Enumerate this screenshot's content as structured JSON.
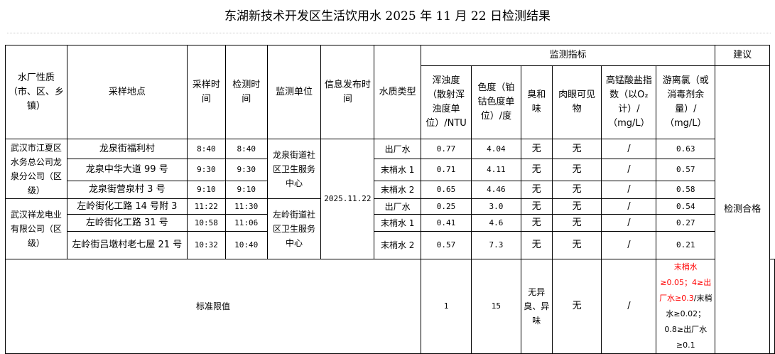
{
  "title": "东湖新技术开发区生活饮用水 2025 年 11 月 22 日检测结果",
  "headers": {
    "plant_type": "水厂性质（市、区、乡镇）",
    "location": "采样地点",
    "sample_time": "采样时间",
    "test_time": "检测时间",
    "monitor_unit": "监测单位",
    "publish_time": "信息发布时间",
    "water_type": "水质类型",
    "indicators": "监测指标",
    "advice": "建议",
    "turbidity": "浑浊度（散射浑浊度单位）/NTU",
    "color": "色度（铂钴色度单位）/度",
    "odor": "臭和味",
    "visible": "肉眼可见物",
    "permanganate": "高锰酸盐指数（以O₂计）/（mg/L）",
    "chlorine": "游离氯（或消毒剂余量）/（mg/L）"
  },
  "groups": [
    {
      "plant": "武汉市江夏区水务总公司龙泉分公司（区级）",
      "unit": "龙泉街道社区卫生服务中心"
    },
    {
      "plant": "武汉祥龙电业有限公司（区级）",
      "unit": "左岭街道社区卫生服务中心"
    }
  ],
  "publish_date": "2025.11.22",
  "advice": "检测合格",
  "rows": [
    {
      "location": "龙泉街福利村",
      "sample": "8:40",
      "test": "8:40",
      "type": "出厂水",
      "turbidity": "0.77",
      "color": "4.04",
      "odor": "无",
      "visible": "无",
      "permanganate": "/",
      "chlorine": "0.63"
    },
    {
      "location": "龙泉中华大道 99 号",
      "sample": "9:30",
      "test": "9:30",
      "type": "末梢水 1",
      "turbidity": "0.71",
      "color": "4.11",
      "odor": "无",
      "visible": "无",
      "permanganate": "/",
      "chlorine": "0.57"
    },
    {
      "location": "龙泉街营泉村 3 号",
      "sample": "9:10",
      "test": "9:10",
      "type": "末梢水 2",
      "turbidity": "0.65",
      "color": "4.46",
      "odor": "无",
      "visible": "无",
      "permanganate": "/",
      "chlorine": "0.58"
    },
    {
      "location": "左岭街化工路 14 号附 3",
      "sample": "11:22",
      "test": "11:30",
      "type": "出厂水",
      "turbidity": "0.25",
      "color": "3.0",
      "odor": "无",
      "visible": "无",
      "permanganate": "/",
      "chlorine": "0.54"
    },
    {
      "location": "左岭街化工路 31 号",
      "sample": "10:58",
      "test": "11:06",
      "type": "末梢水 1",
      "turbidity": "0.41",
      "color": "4.6",
      "odor": "无",
      "visible": "无",
      "permanganate": "/",
      "chlorine": "0.27"
    },
    {
      "location": "左岭街吕墩村老七屋 21 号",
      "sample": "10:32",
      "test": "10:40",
      "type": "末梢水 2",
      "turbidity": "0.57",
      "color": "7.3",
      "odor": "无",
      "visible": "无",
      "permanganate": "/",
      "chlorine": "0.21"
    }
  ],
  "limits": {
    "label": "标准限值",
    "turbidity": "1",
    "color": "15",
    "odor": "无异臭、异味",
    "visible": "无",
    "permanganate": "/",
    "chlorine_red": "末梢水≥0.05；4≥出厂水≥0.3",
    "chlorine_black": "/末梢水≥0.02；0.8≥出厂水≥0.1"
  },
  "colors": {
    "highlight": "#ff0000"
  }
}
